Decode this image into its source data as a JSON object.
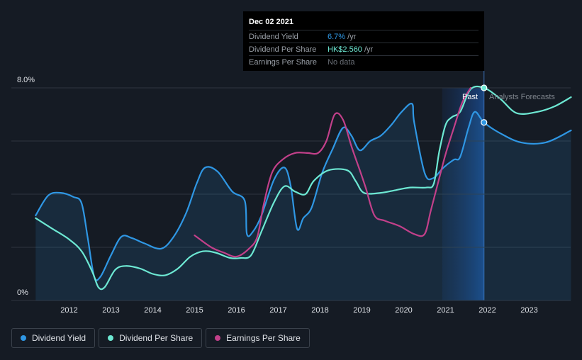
{
  "tooltip": {
    "date": "Dec 02 2021",
    "rows": [
      {
        "name": "Dividend Yield",
        "value": "6.7%",
        "unit": " /yr",
        "color": "#2f97e4"
      },
      {
        "name": "Dividend Per Share",
        "value": "HK$2.560",
        "unit": " /yr",
        "color": "#6de8d3"
      },
      {
        "name": "Earnings Per Share",
        "value": "No data",
        "unit": "",
        "color": "#6b7078"
      }
    ]
  },
  "labels": {
    "past": "Past",
    "forecast": "Analysts Forecasts"
  },
  "legend": [
    {
      "label": "Dividend Yield",
      "color": "#2f97e4"
    },
    {
      "label": "Dividend Per Share",
      "color": "#6de8d3"
    },
    {
      "label": "Earnings Per Share",
      "color": "#c2408a"
    }
  ],
  "chart_data": {
    "type": "line",
    "y_tick_labels": [
      "8.0%",
      "0%"
    ],
    "ylim": [
      0,
      8
    ],
    "xlim": [
      2011.2,
      2024.0
    ],
    "x_ticks": [
      2012,
      2013,
      2014,
      2015,
      2016,
      2017,
      2018,
      2019,
      2020,
      2021,
      2022,
      2023
    ],
    "past_end_x": 2021.92,
    "forecast_start_x": 2020.92,
    "grid": true,
    "series": [
      {
        "name": "Dividend Yield",
        "color": "#2f97e4",
        "area": true,
        "points": [
          [
            2011.2,
            3.2
          ],
          [
            2011.5,
            3.95
          ],
          [
            2011.8,
            4.05
          ],
          [
            2012.1,
            3.9
          ],
          [
            2012.3,
            3.65
          ],
          [
            2012.45,
            2.3
          ],
          [
            2012.6,
            0.9
          ],
          [
            2012.75,
            0.9
          ],
          [
            2013.0,
            1.7
          ],
          [
            2013.25,
            2.4
          ],
          [
            2013.5,
            2.35
          ],
          [
            2013.8,
            2.15
          ],
          [
            2014.2,
            1.95
          ],
          [
            2014.5,
            2.4
          ],
          [
            2014.8,
            3.3
          ],
          [
            2015.05,
            4.4
          ],
          [
            2015.25,
            5.0
          ],
          [
            2015.55,
            4.85
          ],
          [
            2015.9,
            4.1
          ],
          [
            2016.2,
            3.75
          ],
          [
            2016.25,
            2.5
          ],
          [
            2016.4,
            2.6
          ],
          [
            2016.6,
            3.2
          ],
          [
            2016.9,
            4.55
          ],
          [
            2017.15,
            5.0
          ],
          [
            2017.3,
            4.3
          ],
          [
            2017.45,
            2.7
          ],
          [
            2017.6,
            3.1
          ],
          [
            2017.8,
            3.5
          ],
          [
            2018.05,
            4.8
          ],
          [
            2018.3,
            5.7
          ],
          [
            2018.55,
            6.5
          ],
          [
            2018.75,
            6.2
          ],
          [
            2018.95,
            5.65
          ],
          [
            2019.2,
            6.0
          ],
          [
            2019.45,
            6.2
          ],
          [
            2019.7,
            6.6
          ],
          [
            2019.95,
            7.1
          ],
          [
            2020.2,
            7.4
          ],
          [
            2020.25,
            6.7
          ],
          [
            2020.5,
            4.8
          ],
          [
            2020.7,
            4.6
          ],
          [
            2020.95,
            5.0
          ],
          [
            2021.2,
            5.3
          ],
          [
            2021.35,
            5.4
          ],
          [
            2021.55,
            6.5
          ],
          [
            2021.7,
            7.1
          ],
          [
            2021.92,
            6.7
          ],
          [
            2022.3,
            6.3
          ],
          [
            2022.8,
            5.95
          ],
          [
            2023.4,
            5.95
          ],
          [
            2024.0,
            6.4
          ]
        ]
      },
      {
        "name": "Dividend Per Share",
        "color": "#6de8d3",
        "area": false,
        "points": [
          [
            2011.2,
            3.1
          ],
          [
            2011.6,
            2.7
          ],
          [
            2012.0,
            2.3
          ],
          [
            2012.3,
            1.85
          ],
          [
            2012.55,
            1.1
          ],
          [
            2012.7,
            0.5
          ],
          [
            2012.85,
            0.5
          ],
          [
            2013.1,
            1.15
          ],
          [
            2013.35,
            1.3
          ],
          [
            2013.7,
            1.2
          ],
          [
            2014.0,
            1.0
          ],
          [
            2014.3,
            0.95
          ],
          [
            2014.6,
            1.2
          ],
          [
            2014.9,
            1.65
          ],
          [
            2015.2,
            1.85
          ],
          [
            2015.5,
            1.8
          ],
          [
            2015.85,
            1.6
          ],
          [
            2016.1,
            1.6
          ],
          [
            2016.35,
            1.7
          ],
          [
            2016.6,
            2.6
          ],
          [
            2016.9,
            3.7
          ],
          [
            2017.15,
            4.3
          ],
          [
            2017.4,
            4.1
          ],
          [
            2017.65,
            4.0
          ],
          [
            2017.85,
            4.5
          ],
          [
            2018.2,
            4.9
          ],
          [
            2018.65,
            4.9
          ],
          [
            2018.85,
            4.5
          ],
          [
            2019.05,
            4.05
          ],
          [
            2019.45,
            4.05
          ],
          [
            2019.8,
            4.15
          ],
          [
            2020.15,
            4.25
          ],
          [
            2020.55,
            4.25
          ],
          [
            2020.72,
            4.4
          ],
          [
            2020.85,
            5.6
          ],
          [
            2021.0,
            6.6
          ],
          [
            2021.15,
            6.9
          ],
          [
            2021.35,
            7.1
          ],
          [
            2021.6,
            7.95
          ],
          [
            2021.92,
            8.0
          ],
          [
            2022.3,
            7.6
          ],
          [
            2022.7,
            7.05
          ],
          [
            2023.2,
            7.1
          ],
          [
            2023.6,
            7.3
          ],
          [
            2024.0,
            7.65
          ]
        ]
      },
      {
        "name": "Earnings Per Share",
        "color": "#c2408a",
        "area": false,
        "points": [
          [
            2015.0,
            2.45
          ],
          [
            2015.4,
            2.0
          ],
          [
            2015.7,
            1.8
          ],
          [
            2016.0,
            1.65
          ],
          [
            2016.3,
            1.95
          ],
          [
            2016.5,
            2.4
          ],
          [
            2016.65,
            3.6
          ],
          [
            2016.85,
            4.8
          ],
          [
            2017.1,
            5.3
          ],
          [
            2017.4,
            5.55
          ],
          [
            2017.7,
            5.55
          ],
          [
            2017.95,
            5.55
          ],
          [
            2018.15,
            6.0
          ],
          [
            2018.35,
            7.0
          ],
          [
            2018.55,
            6.8
          ],
          [
            2018.75,
            5.8
          ],
          [
            2018.95,
            4.9
          ],
          [
            2019.1,
            4.2
          ],
          [
            2019.3,
            3.2
          ],
          [
            2019.55,
            3.0
          ],
          [
            2019.9,
            2.8
          ],
          [
            2020.25,
            2.5
          ],
          [
            2020.5,
            2.5
          ],
          [
            2020.65,
            3.4
          ],
          [
            2020.85,
            4.6
          ],
          [
            2021.0,
            5.5
          ],
          [
            2021.2,
            6.5
          ],
          [
            2021.4,
            7.45
          ],
          [
            2021.6,
            8.0
          ]
        ]
      }
    ],
    "markers": [
      {
        "series": "Dividend Yield",
        "x": 2021.92,
        "y": 6.7
      },
      {
        "series": "Dividend Per Share",
        "x": 2021.92,
        "y": 8.0
      }
    ]
  }
}
